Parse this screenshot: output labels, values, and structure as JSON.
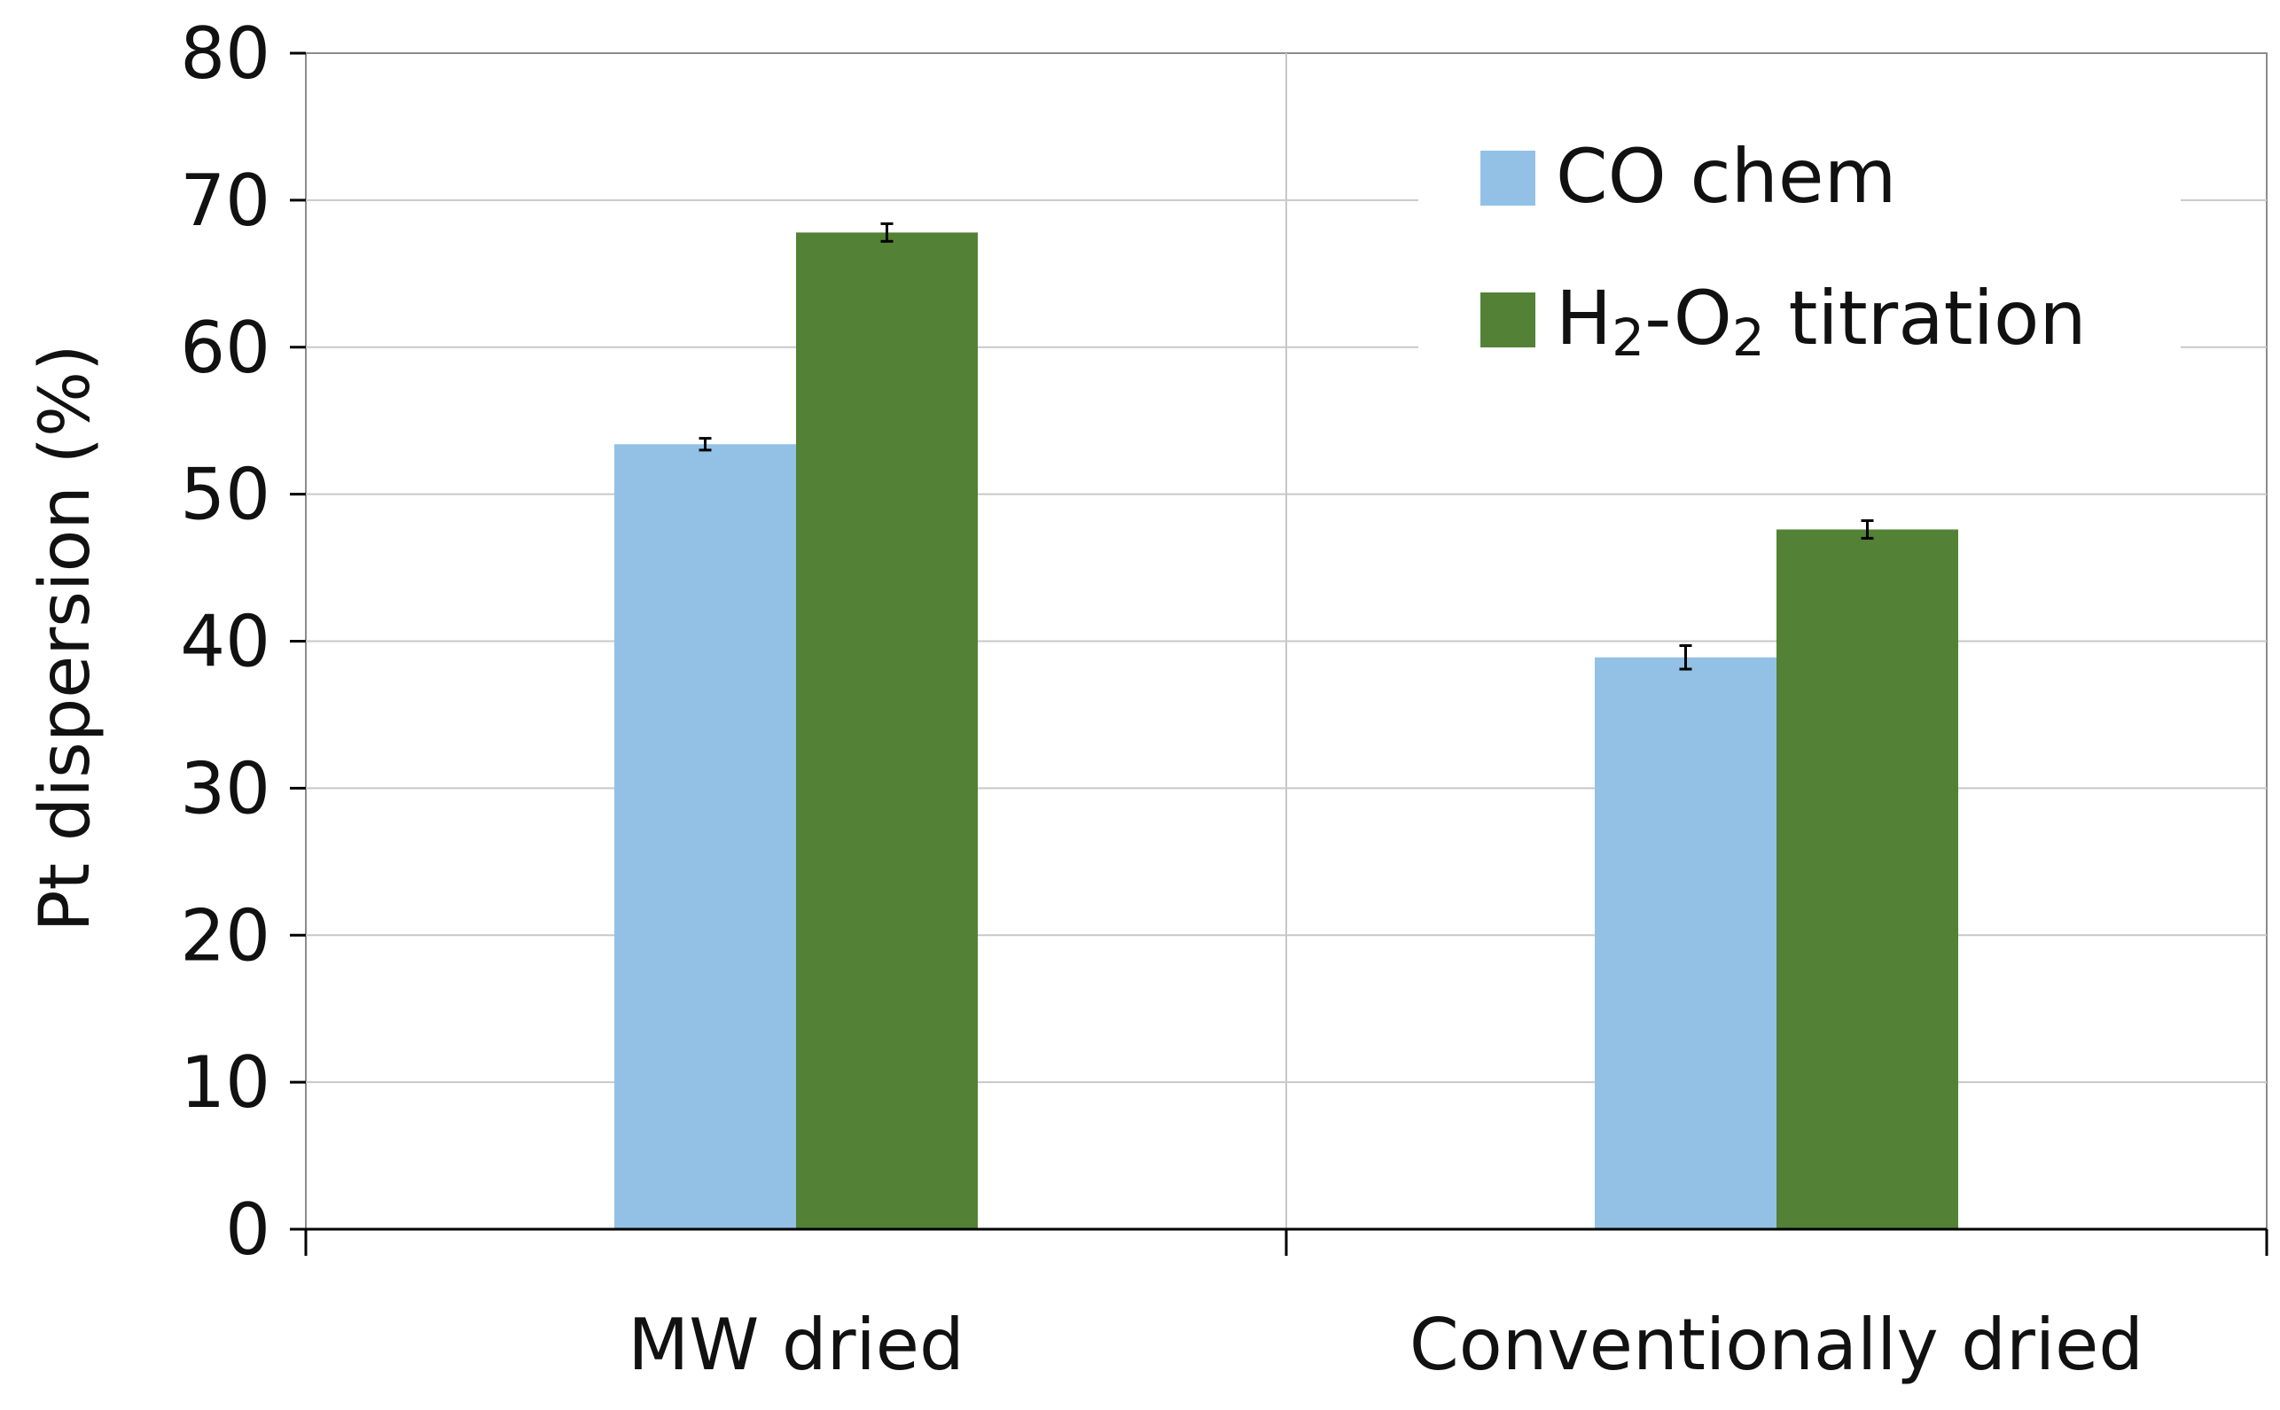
{
  "chart_data": {
    "type": "bar",
    "title": "",
    "xlabel": "",
    "ylabel": "Pt dispersion (%)",
    "ylim": [
      0,
      80
    ],
    "yticks": [
      0,
      10,
      20,
      30,
      40,
      50,
      60,
      70,
      80
    ],
    "grid": true,
    "legend_position": "top-right",
    "categories": [
      "MW dried",
      "Conventionally dried"
    ],
    "series": [
      {
        "name": "CO chem",
        "legend_parts": [
          {
            "text": "CO chem",
            "sub": false
          }
        ],
        "color": "#93C1E6",
        "values": [
          53.4,
          38.9
        ],
        "errors": [
          0.4,
          0.8
        ]
      },
      {
        "name": "H2-O2 titration",
        "legend_parts": [
          {
            "text": "H",
            "sub": false
          },
          {
            "text": "2",
            "sub": true
          },
          {
            "text": "-O",
            "sub": false
          },
          {
            "text": "2",
            "sub": true
          },
          {
            "text": " titration",
            "sub": false
          }
        ],
        "color": "#538135",
        "values": [
          67.8,
          47.6
        ],
        "errors": [
          0.6,
          0.6
        ]
      }
    ]
  }
}
